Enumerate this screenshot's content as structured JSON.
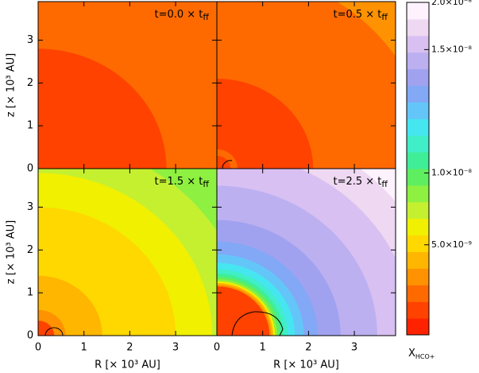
{
  "chart_data": {
    "type": "contour",
    "xlabel": "R  [× 10³ AU]",
    "ylabel": "z  [× 10³ AU]",
    "xlim": [
      0,
      3.9
    ],
    "ylim": [
      0,
      3.9
    ],
    "xticks": [
      0,
      1,
      2,
      3
    ],
    "yticks": [
      0,
      1,
      2,
      3
    ],
    "colorbar": {
      "label": "X",
      "label_sub": "HCO+",
      "levels": [
        0,
        5e-10,
        1.5e-09,
        2.5e-09,
        3.5e-09,
        4.5e-09,
        5.7e-09,
        6.9e-09,
        8.1e-09,
        9.3e-09,
        1.025e-08,
        1.09e-08,
        1.15e-08,
        1.21e-08,
        1.275e-08,
        1.34e-08,
        1.4e-08,
        1.46e-08,
        1.71e-08,
        1.85e-08,
        2e-08
      ],
      "colors": [
        "#ff2200",
        "#ff4200",
        "#ff6a00",
        "#ff9200",
        "#ffb600",
        "#ffd800",
        "#f0f000",
        "#c4f030",
        "#8ef040",
        "#5eee60",
        "#40ee98",
        "#40eec8",
        "#46e6f0",
        "#64c6f8",
        "#82a8f6",
        "#a0a2f0",
        "#bcb0f0",
        "#d8c0f2",
        "#eed8f2",
        "#fff2ff"
      ],
      "ticks": [
        {
          "value": 5e-09,
          "label": "5.0×10⁻⁹"
        },
        {
          "value": 1e-08,
          "label": "1.0×10⁻⁸"
        },
        {
          "value": 1.5e-08,
          "label": "1.5×10⁻⁸"
        },
        {
          "value": 2e-08,
          "label": "2.0×10⁻⁸"
        }
      ]
    },
    "panels": [
      {
        "time_label": "t=0.0 × t",
        "time_sub": "ff",
        "bands": [
          {
            "r": 6,
            "level": 2.2e-09
          },
          {
            "r": 4.3,
            "level": 1.7e-09
          },
          {
            "r": 2.8,
            "level": 1.2e-09
          }
        ]
      },
      {
        "time_label": "t=0.5 × t",
        "time_sub": "ff",
        "bands": [
          {
            "r": 6,
            "level": 2.8e-09
          },
          {
            "r": 4.7,
            "level": 2.2e-09
          },
          {
            "r": 3.3,
            "level": 1.7e-09
          },
          {
            "r": 2.1,
            "level": 1.2e-09
          },
          {
            "r": 0.45,
            "level": 2.2e-09
          },
          {
            "r": 0.3,
            "level": 1.2e-09
          }
        ]
      },
      {
        "time_label": "t=1.5 × t",
        "time_sub": "ff",
        "bands": [
          {
            "r": 6,
            "level": 8.7e-09
          },
          {
            "r": 4.6,
            "level": 7.5e-09
          },
          {
            "r": 3.8,
            "level": 6.3e-09
          },
          {
            "r": 3.0,
            "level": 5e-09
          },
          {
            "r": 1.4,
            "level": 4e-09
          },
          {
            "r": 0.6,
            "level": 3e-09
          },
          {
            "r": 0.35,
            "level": 8e-10
          }
        ]
      },
      {
        "time_label": "t=2.5 × t",
        "time_sub": "ff",
        "bands": [
          {
            "r": 6,
            "level": 1.9e-08
          },
          {
            "r": 5.0,
            "level": 1.78e-08
          },
          {
            "r": 4.3,
            "level": 1.6e-08
          },
          {
            "r": 3.5,
            "level": 1.43e-08
          },
          {
            "r": 2.7,
            "level": 1.37e-08
          },
          {
            "r": 2.2,
            "level": 1.3e-08
          },
          {
            "r": 1.9,
            "level": 1.24e-08
          },
          {
            "r": 1.7,
            "level": 1.18e-08
          },
          {
            "r": 1.55,
            "level": 1.12e-08
          },
          {
            "r": 1.45,
            "level": 1.05e-08
          },
          {
            "r": 1.38,
            "level": 9.8e-09
          },
          {
            "r": 1.32,
            "level": 8.5e-09
          },
          {
            "r": 1.27,
            "level": 6e-09
          },
          {
            "r": 1.23,
            "level": 4e-09
          },
          {
            "r": 1.19,
            "level": 3e-09
          },
          {
            "r": 1.15,
            "level": 8e-10
          }
        ]
      }
    ]
  }
}
